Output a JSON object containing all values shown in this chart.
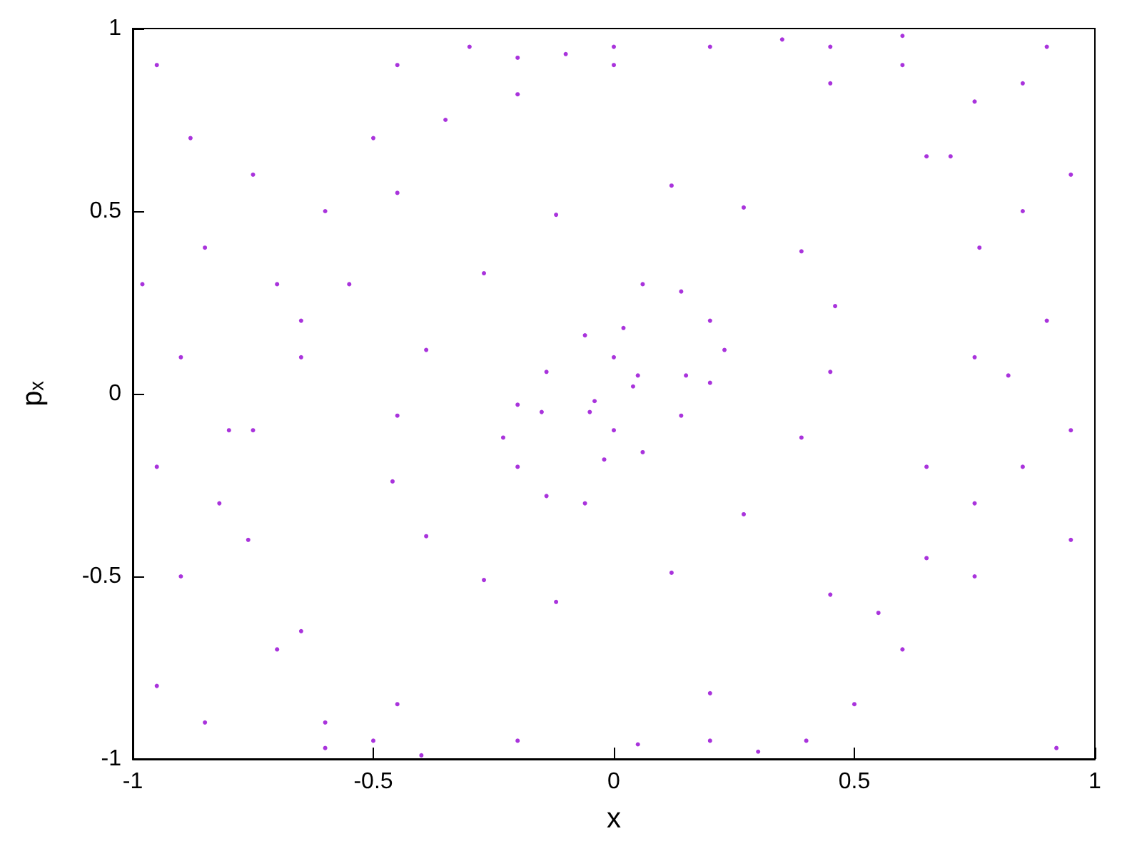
{
  "chart_data": {
    "type": "scatter",
    "xlabel": "x",
    "ylabel": "pₓ",
    "xlim": [
      -1,
      1
    ],
    "ylim": [
      -1,
      1
    ],
    "xticks": [
      -1,
      -0.5,
      0,
      0.5,
      1
    ],
    "yticks": [
      -1,
      -0.5,
      0,
      0.5,
      1
    ],
    "grid": false,
    "marker": "circle",
    "series": [
      {
        "color": "#9400d3",
        "x": [
          -0.95,
          -0.98,
          -0.9,
          -0.85,
          -0.75,
          -0.7,
          -0.6,
          -0.5,
          -0.45,
          -0.3,
          -0.2,
          -0.35,
          -0.55,
          -0.65,
          -0.8,
          -0.95,
          -0.9,
          -0.95,
          -0.85,
          -0.7,
          -0.6,
          -0.5,
          -0.82,
          -0.6,
          0,
          -0.1,
          0.45,
          0.6,
          0.75,
          0.9,
          0.95,
          0.85,
          0.7,
          0.9,
          0.95,
          0.85,
          0.82,
          0.95,
          0.75,
          0.6,
          0.5,
          0.4,
          0.55,
          0.65,
          0.75,
          0.92,
          0.3,
          0.2,
          0.05,
          -0.88,
          -0.4,
          0.35,
          0.85,
          0.6
        ],
        "values": [
          0.9,
          0.3,
          0.1,
          0.4,
          0.6,
          0.3,
          0.5,
          0.7,
          0.9,
          0.95,
          0.92,
          0.75,
          0.3,
          0.1,
          -0.1,
          -0.2,
          -0.5,
          -0.8,
          -0.9,
          -0.7,
          -0.9,
          -0.95,
          -0.3,
          -0.97,
          0.95,
          0.93,
          0.95,
          0.9,
          0.8,
          0.95,
          0.6,
          0.5,
          0.65,
          0.2,
          -0.1,
          -0.2,
          0.05,
          -0.4,
          -0.5,
          -0.7,
          -0.85,
          -0.95,
          -0.6,
          -0.45,
          -0.3,
          -0.97,
          -0.98,
          -0.95,
          -0.96,
          0.7,
          -0.99,
          0.97,
          0.85,
          0.98
        ]
      },
      {
        "color": "#9400d3",
        "x": [
          0.2,
          0.45,
          0.65,
          0.76,
          0.75,
          0.65,
          0.45,
          0.2,
          -0.2,
          -0.45,
          -0.65,
          -0.76,
          -0.75,
          -0.65,
          -0.45,
          -0.2,
          0,
          0.12,
          0.27,
          0.39,
          0.46,
          0.45,
          0.39,
          0.27,
          0.12,
          -0.12,
          -0.27,
          -0.39,
          -0.46,
          -0.45,
          -0.39,
          -0.27,
          -0.12,
          0.06,
          0.14,
          0.2,
          0.23,
          0.2,
          0.14,
          0.06,
          -0.06,
          -0.14,
          -0.2,
          -0.23,
          -0.2,
          -0.14,
          -0.06,
          0.02,
          0.15,
          -0.15,
          -0.02,
          0.05,
          -0.05,
          0,
          0,
          0.04,
          -0.04
        ],
        "values": [
          0.95,
          0.85,
          0.65,
          0.4,
          0.1,
          -0.2,
          -0.55,
          -0.82,
          -0.95,
          -0.85,
          -0.65,
          -0.4,
          -0.1,
          0.2,
          0.55,
          0.82,
          0.9,
          0.57,
          0.51,
          0.39,
          0.24,
          0.06,
          -0.12,
          -0.33,
          -0.49,
          -0.57,
          -0.51,
          -0.39,
          -0.24,
          -0.06,
          0.12,
          0.33,
          0.49,
          0.3,
          0.28,
          0.2,
          0.12,
          0.03,
          -0.06,
          -0.16,
          -0.3,
          -0.28,
          -0.2,
          -0.12,
          -0.03,
          0.06,
          0.16,
          0.18,
          0.05,
          -0.05,
          -0.18,
          0.05,
          -0.05,
          0.1,
          -0.1,
          0.02,
          -0.02
        ]
      }
    ]
  }
}
